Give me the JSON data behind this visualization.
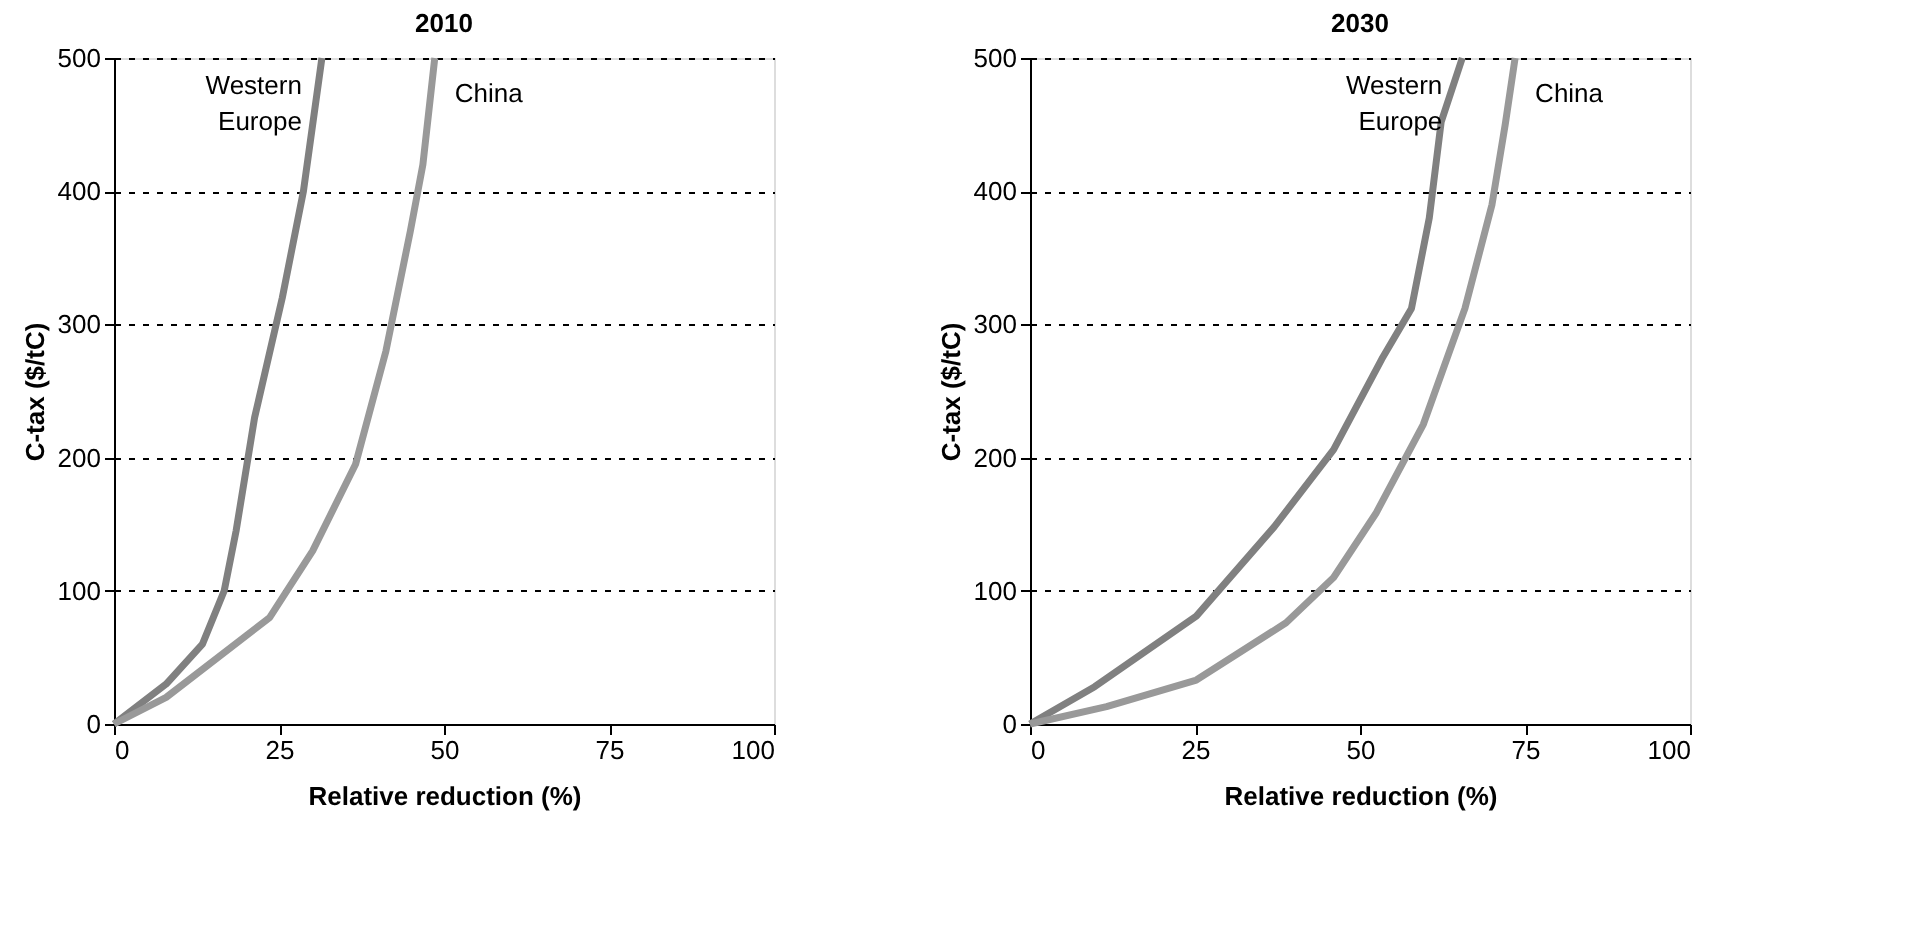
{
  "chart_data": [
    {
      "type": "line",
      "title": "2010",
      "xlabel": "Relative reduction (%)",
      "ylabel": "C-tax ($/tC)",
      "xlim": [
        0,
        100
      ],
      "xticks": [
        0,
        25,
        50,
        75,
        100
      ],
      "ylim": [
        0,
        500
      ],
      "yticks": [
        0,
        100,
        200,
        300,
        400,
        500
      ],
      "grid": "y",
      "marker": "none",
      "line_style": "solid",
      "series": [
        {
          "name": "Western Europe",
          "color": "#808080",
          "x": [
            0,
            7.9,
            13.4,
            16.7,
            18.5,
            21.3,
            25.5,
            28.7,
            31.5
          ],
          "values": [
            0,
            30,
            60,
            100,
            145,
            230,
            320,
            400,
            500
          ]
        },
        {
          "name": "China",
          "color": "#999999",
          "x": [
            0,
            7.9,
            23.6,
            30.1,
            36.6,
            41.2,
            44.9,
            46.8,
            48.6
          ],
          "values": [
            0,
            20,
            80,
            130,
            195,
            280,
            370,
            420,
            500
          ]
        }
      ]
    },
    {
      "type": "line",
      "title": "2030",
      "xlabel": "Relative reduction (%)",
      "ylabel": "C-tax ($/tC)",
      "xlim": [
        0,
        100
      ],
      "xticks": [
        0,
        25,
        50,
        75,
        100
      ],
      "ylim": [
        0,
        500
      ],
      "yticks": [
        0,
        100,
        200,
        300,
        400,
        500
      ],
      "grid": "y",
      "marker": "none",
      "line_style": "solid",
      "series": [
        {
          "name": "Western Europe",
          "color": "#808080",
          "x": [
            0,
            9.8,
            25.2,
            37,
            46,
            53.3,
            57.8,
            60.5,
            62.3,
            65.5
          ],
          "values": [
            0,
            28,
            81,
            148,
            206,
            274,
            312,
            380,
            452,
            500
          ]
        },
        {
          "name": "China",
          "color": "#999999",
          "x": [
            0,
            11.6,
            25.2,
            38.8,
            46,
            52.4,
            59.6,
            65.9,
            70,
            72,
            73.5
          ],
          "values": [
            0,
            13,
            33,
            76,
            110,
            158,
            225,
            312,
            390,
            450,
            500
          ]
        }
      ]
    }
  ]
}
